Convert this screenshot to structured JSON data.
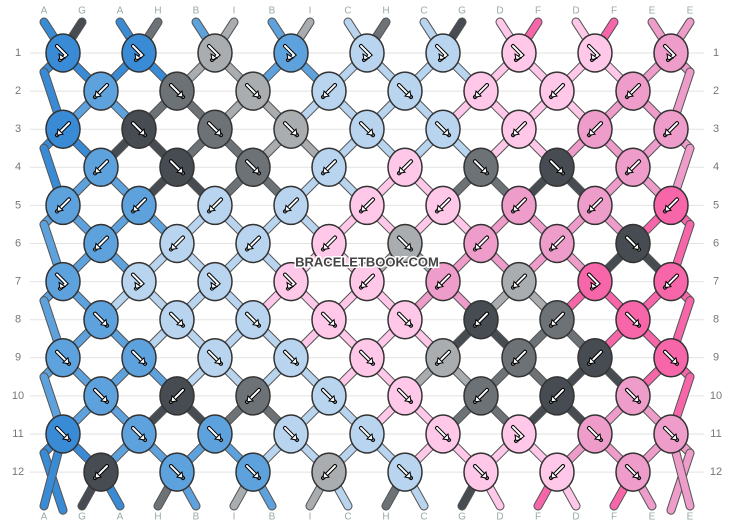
{
  "top_labels": [
    "A",
    "G",
    "A",
    "H",
    "B",
    "I",
    "B",
    "I",
    "C",
    "H",
    "C",
    "G",
    "D",
    "F",
    "D",
    "F",
    "E",
    "E"
  ],
  "bottom_labels": [
    "A",
    "G",
    "A",
    "H",
    "B",
    "I",
    "B",
    "I",
    "C",
    "H",
    "C",
    "G",
    "D",
    "F",
    "D",
    "F",
    "E",
    "E"
  ],
  "rows": [
    "1",
    "2",
    "3",
    "4",
    "5",
    "6",
    "7",
    "8",
    "9",
    "10",
    "11",
    "12"
  ],
  "watermark": "BRACELETBOOK.COM",
  "colors": {
    "A": "#3a8bd6",
    "B": "#5ea2dd",
    "C": "#b8d4ee",
    "G": "#474c52",
    "H": "#6d7277",
    "I": "#a9adb0",
    "D": "#ffc8e8",
    "E": "#ee9cc9",
    "F": "#f766a9"
  },
  "knots": [
    [
      [
        "A",
        "fb"
      ],
      [
        "A",
        "fb"
      ],
      [
        "I",
        "fb"
      ],
      [
        "B",
        "fb"
      ],
      [
        "C",
        "fb"
      ],
      [
        "C",
        "fb"
      ],
      [
        "D",
        "fb"
      ],
      [
        "D",
        "fb"
      ],
      [
        "E",
        "fb"
      ]
    ],
    [
      [
        "B",
        "bwd"
      ],
      [
        "H",
        "fwd"
      ],
      [
        "I",
        "fwd"
      ],
      [
        "C",
        "bwd"
      ],
      [
        "C",
        "fwd"
      ],
      [
        "D",
        "bwd"
      ],
      [
        "D",
        "bwd"
      ],
      [
        "E",
        "bwd"
      ]
    ],
    [
      [
        "A",
        "bwd"
      ],
      [
        "G",
        "fwd"
      ],
      [
        "H",
        "fwd"
      ],
      [
        "I",
        "fwd"
      ],
      [
        "C",
        "fwd"
      ],
      [
        "C",
        "fwd"
      ],
      [
        "D",
        "bwd"
      ],
      [
        "E",
        "bwd"
      ],
      [
        "E",
        "bwd"
      ]
    ],
    [
      [
        "B",
        "bwd"
      ],
      [
        "G",
        "fwd"
      ],
      [
        "H",
        "fwd"
      ],
      [
        "C",
        "bwd"
      ],
      [
        "D",
        "bwd"
      ],
      [
        "H",
        "fwd"
      ],
      [
        "G",
        "fwd"
      ],
      [
        "E",
        "bwd"
      ]
    ],
    [
      [
        "B",
        "bwd"
      ],
      [
        "B",
        "bwd"
      ],
      [
        "C",
        "bwd"
      ],
      [
        "C",
        "bwd"
      ],
      [
        "D",
        "bwd"
      ],
      [
        "D",
        "bwd"
      ],
      [
        "E",
        "bwd"
      ],
      [
        "E",
        "bwd"
      ],
      [
        "F",
        "bwd"
      ]
    ],
    [
      [
        "B",
        "bwd"
      ],
      [
        "C",
        "bwd"
      ],
      [
        "C",
        "bwd"
      ],
      [
        "D",
        "bwd"
      ],
      [
        "I",
        "fwd"
      ],
      [
        "E",
        "bwd"
      ],
      [
        "E",
        "bwd"
      ],
      [
        "G",
        "fwd"
      ]
    ],
    [
      [
        "B",
        "fb"
      ],
      [
        "C",
        "fb"
      ],
      [
        "C",
        "fb"
      ],
      [
        "D",
        "fb"
      ],
      [
        "D",
        "bwd"
      ],
      [
        "E",
        "bwd"
      ],
      [
        "I",
        "bwd"
      ],
      [
        "F",
        "fb"
      ],
      [
        "F",
        "bwd"
      ]
    ],
    [
      [
        "B",
        "fwd"
      ],
      [
        "C",
        "fwd"
      ],
      [
        "C",
        "fwd"
      ],
      [
        "D",
        "fwd"
      ],
      [
        "D",
        "fwd"
      ],
      [
        "G",
        "bwd"
      ],
      [
        "H",
        "bwd"
      ],
      [
        "F",
        "fwd"
      ]
    ],
    [
      [
        "B",
        "fwd"
      ],
      [
        "B",
        "fwd"
      ],
      [
        "C",
        "fwd"
      ],
      [
        "C",
        "fwd"
      ],
      [
        "D",
        "fwd"
      ],
      [
        "I",
        "bwd"
      ],
      [
        "H",
        "bwd"
      ],
      [
        "G",
        "bwd"
      ],
      [
        "F",
        "fwd"
      ]
    ],
    [
      [
        "B",
        "fwd"
      ],
      [
        "G",
        "bwd"
      ],
      [
        "H",
        "bwd"
      ],
      [
        "C",
        "fwd"
      ],
      [
        "D",
        "fwd"
      ],
      [
        "H",
        "bwd"
      ],
      [
        "G",
        "bwd"
      ],
      [
        "E",
        "fwd"
      ]
    ],
    [
      [
        "A",
        "fwd"
      ],
      [
        "B",
        "fwd"
      ],
      [
        "B",
        "fwd"
      ],
      [
        "C",
        "fwd"
      ],
      [
        "C",
        "fwd"
      ],
      [
        "D",
        "fwd"
      ],
      [
        "D",
        "fb"
      ],
      [
        "E",
        "fwd"
      ],
      [
        "E",
        "fwd"
      ]
    ],
    [
      [
        "G",
        "bwd"
      ],
      [
        "B",
        "fwd"
      ],
      [
        "B",
        "fwd"
      ],
      [
        "I",
        "bwd"
      ],
      [
        "C",
        "fwd"
      ],
      [
        "D",
        "fwd"
      ],
      [
        "D",
        "bwd"
      ],
      [
        "E",
        "fwd"
      ]
    ]
  ]
}
